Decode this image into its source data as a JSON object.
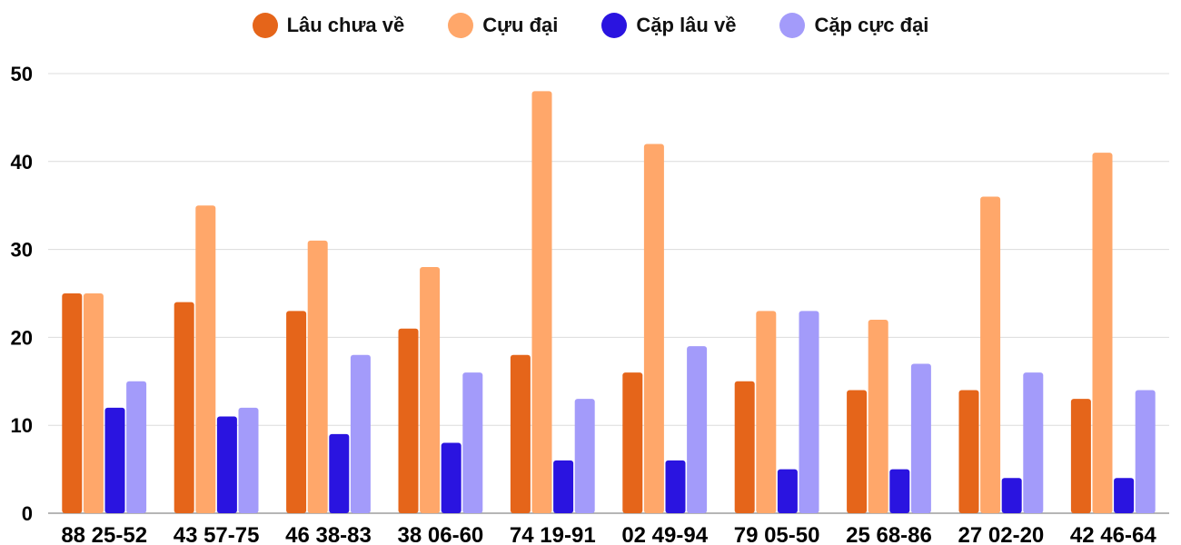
{
  "chart_data": {
    "type": "bar",
    "title": "",
    "xlabel": "",
    "ylabel": "",
    "ylim": [
      0,
      50
    ],
    "yticks": [
      0,
      10,
      20,
      30,
      40,
      50
    ],
    "grid": true,
    "legend_position": "top-center",
    "categories": [
      "88 25-52",
      "43 57-75",
      "46 38-83",
      "38 06-60",
      "74 19-91",
      "02 49-94",
      "79 05-50",
      "25 68-86",
      "27 02-20",
      "42 46-64"
    ],
    "series": [
      {
        "name": "Lâu chưa về",
        "color": "#E5651A",
        "values": [
          25,
          24,
          23,
          21,
          18,
          16,
          15,
          14,
          14,
          13
        ]
      },
      {
        "name": "Cựu đại",
        "color": "#FFA76A",
        "values": [
          25,
          35,
          31,
          28,
          48,
          42,
          23,
          22,
          36,
          41
        ]
      },
      {
        "name": "Cặp lâu về",
        "color": "#2A14E0",
        "values": [
          12,
          11,
          9,
          8,
          6,
          6,
          5,
          5,
          4,
          4
        ]
      },
      {
        "name": "Cặp cực đại",
        "color": "#A39BFA",
        "values": [
          15,
          12,
          18,
          16,
          13,
          19,
          23,
          17,
          16,
          14
        ]
      }
    ]
  }
}
